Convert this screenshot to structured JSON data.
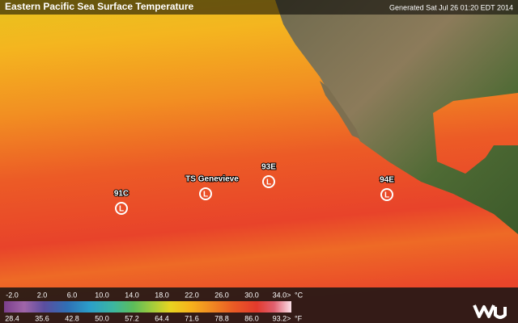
{
  "header": {
    "title": "Eastern Pacific Sea Surface Temperature",
    "generated": "Generated Sat Jul 26 01:20 EDT 2014"
  },
  "storms": [
    {
      "label": "91C",
      "symbol": "L"
    },
    {
      "label": "TS Genevieve",
      "symbol": "L"
    },
    {
      "label": "93E",
      "symbol": "L"
    },
    {
      "label": "94E",
      "symbol": "L"
    }
  ],
  "legend": {
    "celsius": [
      "-2.0",
      "2.0",
      "6.0",
      "10.0",
      "14.0",
      "18.0",
      "22.0",
      "26.0",
      "30.0",
      "34.0>"
    ],
    "celsius_unit": "°C",
    "fahrenheit": [
      "28.4",
      "35.6",
      "42.8",
      "50.0",
      "57.2",
      "64.4",
      "71.6",
      "78.8",
      "86.0",
      "93.2>"
    ],
    "fahrenheit_unit": "°F"
  }
}
